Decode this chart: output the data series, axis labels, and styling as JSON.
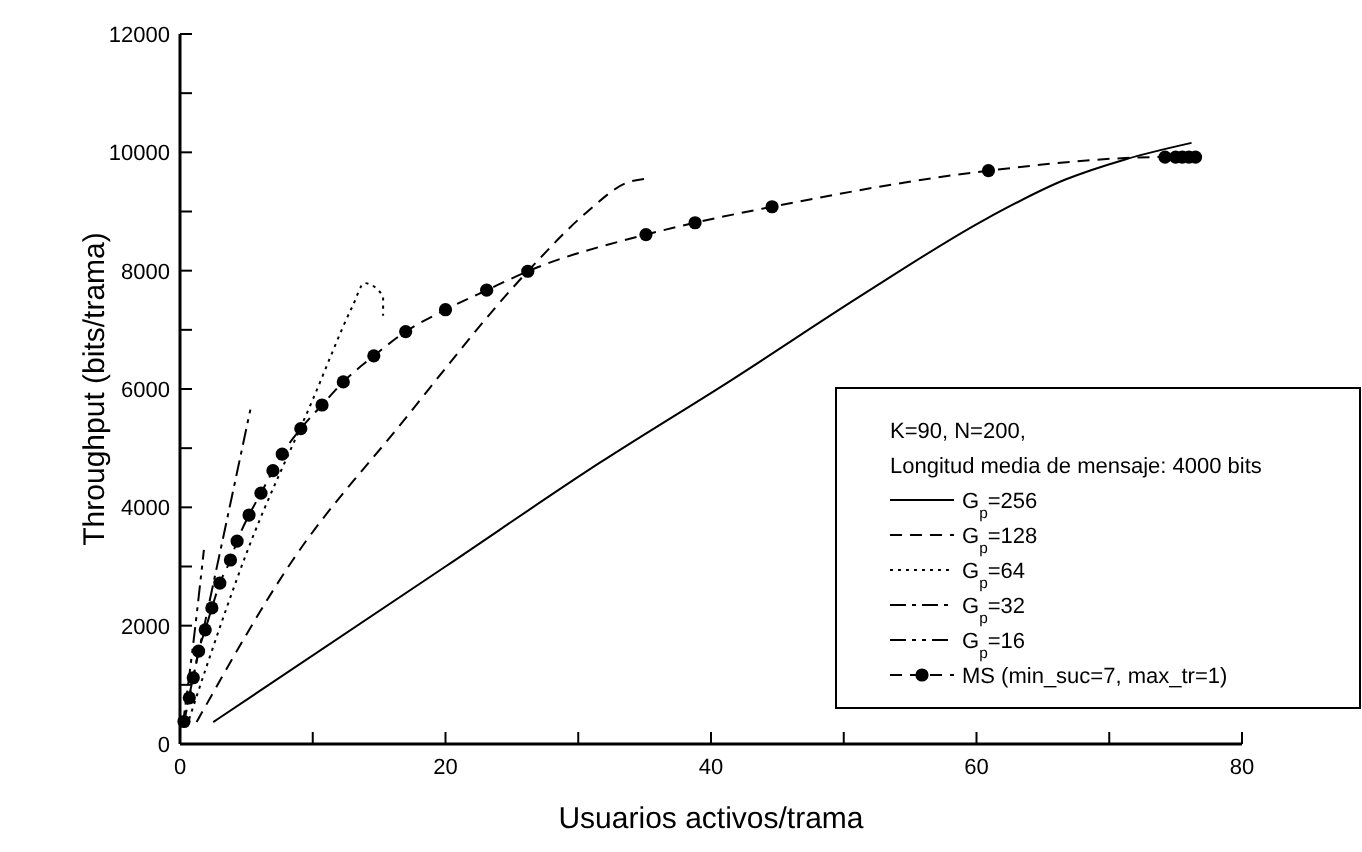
{
  "chart_data": {
    "type": "line",
    "xlabel": "Usuarios activos/trama",
    "ylabel": "Throughput (bits/trama)",
    "legend_title": "K=90, N=200,\nLongitud media de mensaje: 4000 bits",
    "xlim": [
      0,
      80
    ],
    "ylim": [
      0,
      12000
    ],
    "xticks": [
      0,
      {
        "value": 10,
        "label": null
      },
      20,
      {
        "value": 30,
        "label": null
      },
      40,
      {
        "value": 50,
        "label": null
      },
      60,
      {
        "value": 70,
        "label": null
      },
      80
    ],
    "yticks": [
      0,
      {
        "value": 1000,
        "label": null
      },
      2000,
      {
        "value": 3000,
        "label": null
      },
      4000,
      {
        "value": 5000,
        "label": null
      },
      6000,
      {
        "value": 7000,
        "label": null
      },
      8000,
      {
        "value": 9000,
        "label": null
      },
      10000,
      {
        "value": 11000,
        "label": null
      },
      12000
    ],
    "grid": false,
    "legend": "bottom right",
    "marker": "none",
    "series": [
      {
        "name": "G$_{p}$=256",
        "color": "#000000",
        "line_style": "solid",
        "x": [
          2.5,
          20,
          31.6,
          41.6,
          51.6,
          60.6,
          66.7,
          71.2,
          76.2
        ],
        "values": [
          370,
          3000,
          4750,
          6160,
          7620,
          8860,
          9540,
          9880,
          10160
        ]
      },
      {
        "name": "G$_{p}$=128",
        "color": "#000000",
        "line_style": "dashed",
        "x": [
          1.25,
          8.5,
          16.5,
          26.2,
          30.6,
          33.6,
          35.4
        ],
        "values": [
          370,
          3110,
          5370,
          7990,
          8980,
          9480,
          9560
        ]
      },
      {
        "name": "G$_{p}$=64",
        "color": "#000000",
        "line_style": "dotted",
        "x": [
          0.5,
          2,
          5,
          10,
          13,
          13.9,
          15.3,
          15.3
        ],
        "values": [
          290,
          1310,
          3220,
          5820,
          7400,
          7790,
          7570,
          7240
        ]
      },
      {
        "name": "G$_{p}$=32",
        "color": "#000000",
        "line_style": "dashdot",
        "x": [
          0.2,
          2.5,
          5.3
        ],
        "values": [
          300,
          2700,
          5650
        ]
      },
      {
        "name": "G$_{p}$=16",
        "color": "#000000",
        "line_style": "dashdotdot",
        "x": [
          0.2,
          1,
          1.8
        ],
        "values": [
          300,
          1700,
          3280
        ]
      },
      {
        "name": "MS (min_suc=7, max_tr=1)",
        "color": "#000000",
        "line_style": "dashed",
        "marker": "circle",
        "x": [
          0.3,
          0.7,
          1,
          1.4,
          1.9,
          2.4,
          3,
          3.8,
          4.3,
          5.2,
          6.1,
          7,
          7.7,
          9.1,
          10.7,
          12.3,
          14.6,
          17,
          20,
          23.1,
          26.2,
          35.1,
          38.8,
          44.6,
          60.9,
          74.2,
          75,
          75.5,
          76,
          76.5
        ],
        "values": [
          380,
          780,
          1120,
          1570,
          1930,
          2300,
          2720,
          3110,
          3430,
          3870,
          4240,
          4620,
          4900,
          5330,
          5730,
          6120,
          6560,
          6970,
          7340,
          7670,
          7990,
          8610,
          8810,
          9080,
          9690,
          9920,
          9920,
          9920,
          9920,
          9920
        ]
      }
    ]
  }
}
